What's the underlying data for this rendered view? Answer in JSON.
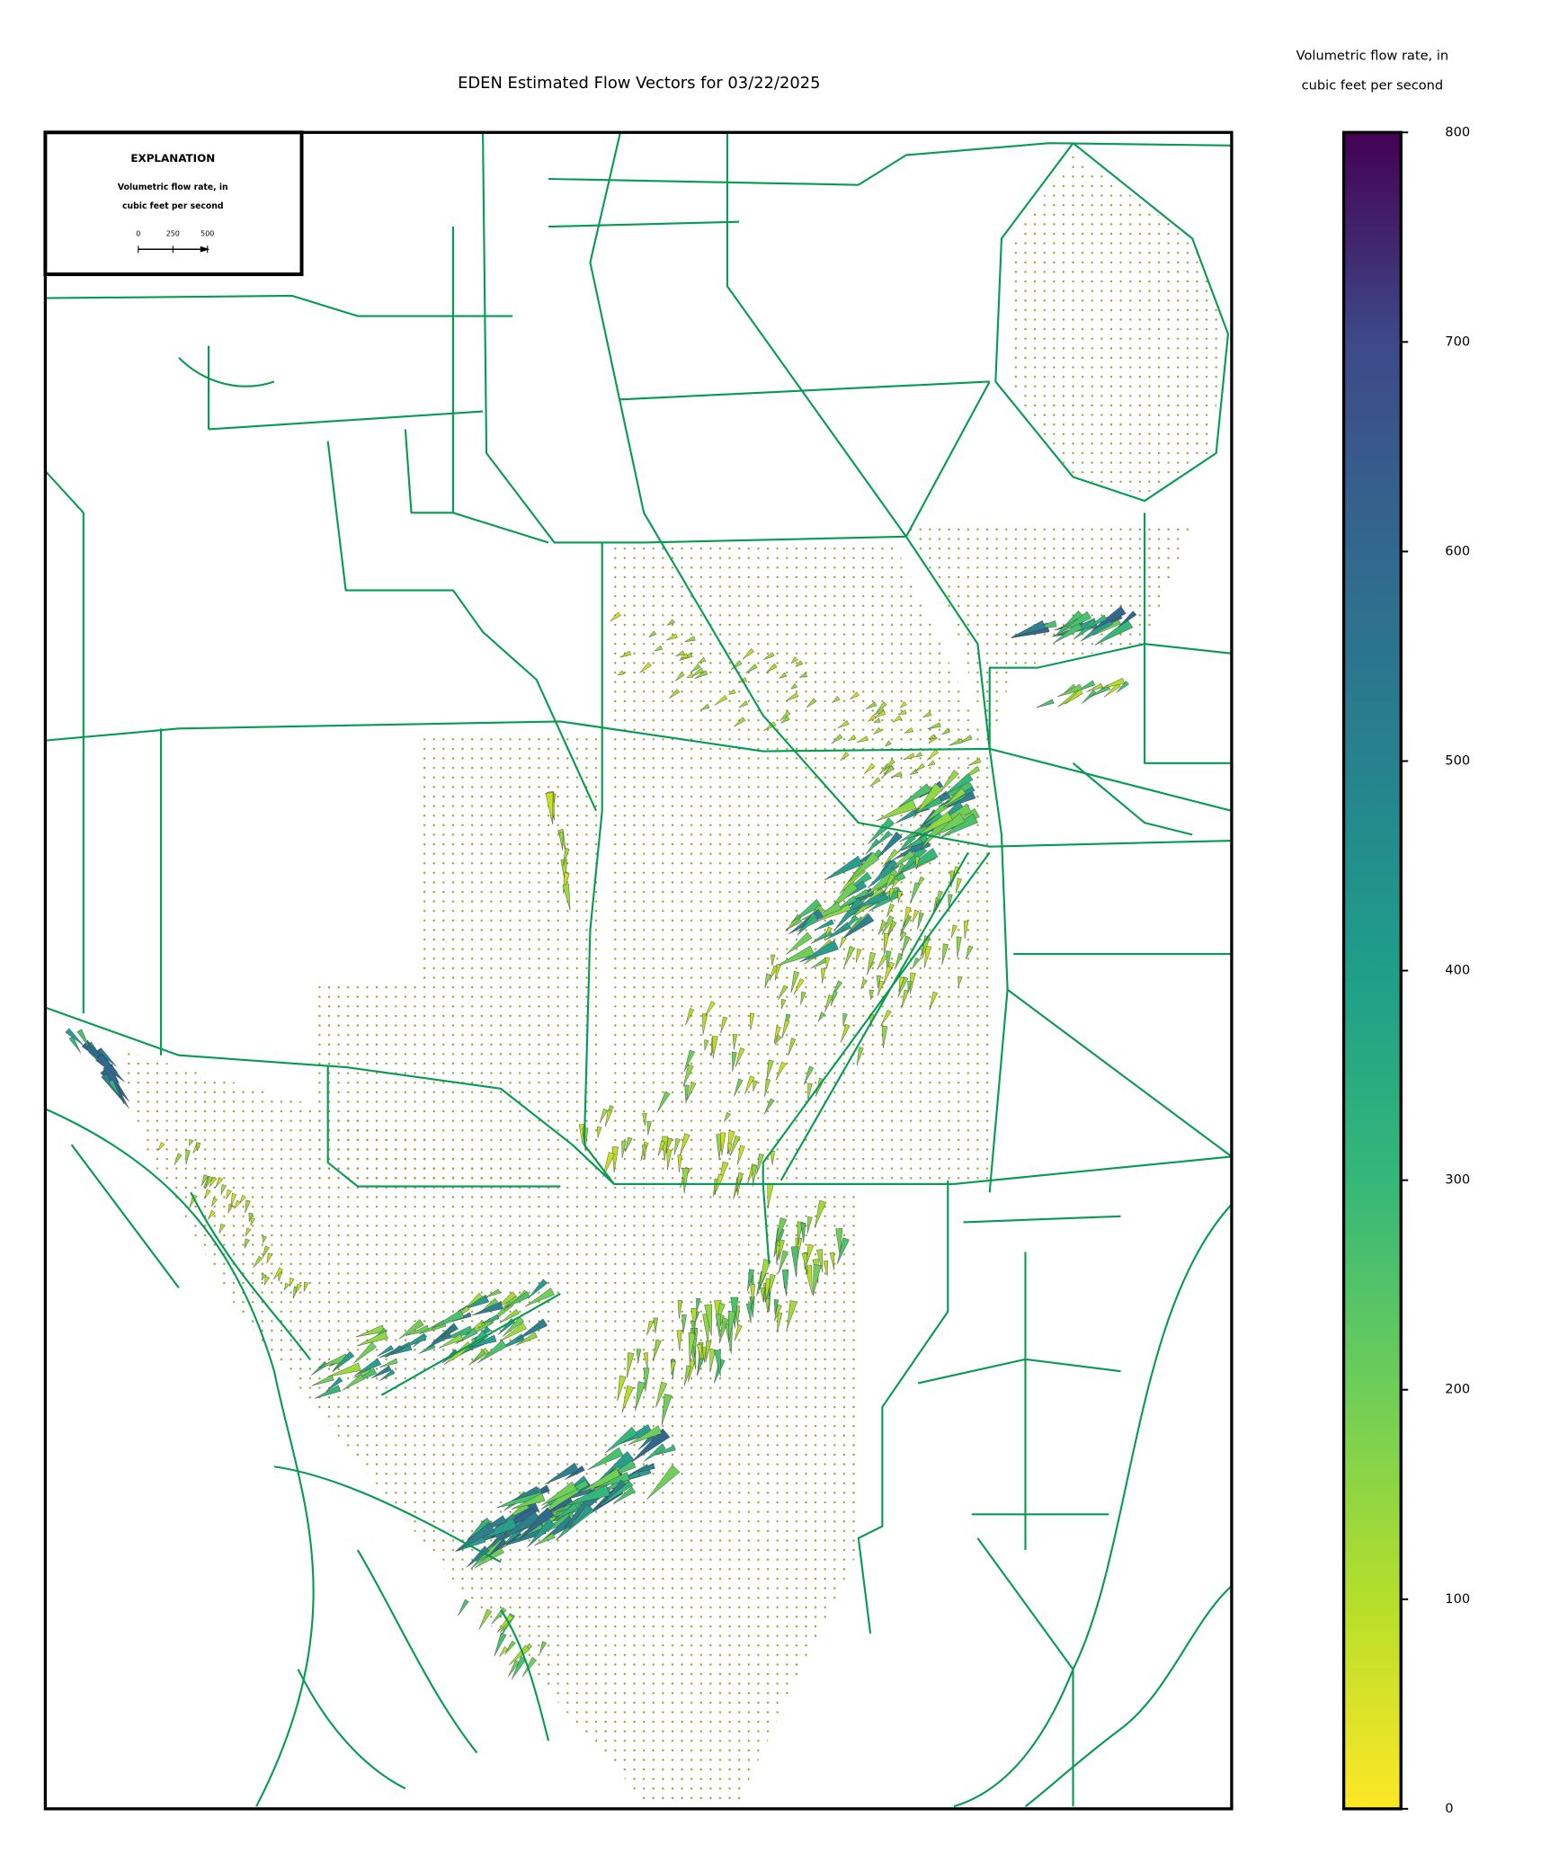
{
  "title": "EDEN Estimated Flow Vectors for 03/22/2025",
  "colorbar": {
    "label": [
      "Volumetric flow rate, in",
      "cubic feet per second"
    ],
    "lim": [
      0,
      800
    ],
    "ticks": [
      0,
      100,
      200,
      300,
      400,
      500,
      600,
      700,
      800
    ]
  },
  "explanation": {
    "title": "EXPLANATION",
    "label": [
      "Volumetric flow rate, in",
      "cubic feet per second"
    ],
    "scale_ticks": [
      0,
      250,
      500
    ]
  }
}
